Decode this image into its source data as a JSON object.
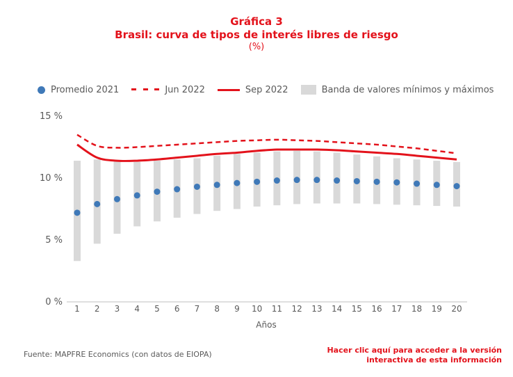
{
  "title": {
    "line1": "Gráfica 3",
    "line2": "Brasil: curva de tipos de interés libres de riesgo",
    "line3": "(%)"
  },
  "legend": {
    "items": [
      {
        "label": "Promedio 2021"
      },
      {
        "label": "Jun 2022"
      },
      {
        "label": "Sep 2022"
      },
      {
        "label": "Banda de valores mínimos y máximos"
      }
    ]
  },
  "footer": {
    "source": "Fuente: MAPFRE Economics (con datos de EIOPA)",
    "link_line1": "Hacer clic aquí para acceder a la versión",
    "link_line2": "interactiva de esta información"
  },
  "colors": {
    "accent": "#e3121b",
    "dots": "#3f79b8",
    "band": "#d9d9d9",
    "axis": "#bfbfbf"
  },
  "chart_data": {
    "type": "line",
    "title": "Brasil: curva de tipos de interés libres de riesgo",
    "xlabel": "Años",
    "ylabel": "",
    "x": [
      1,
      2,
      3,
      4,
      5,
      6,
      7,
      8,
      9,
      10,
      11,
      12,
      13,
      14,
      15,
      16,
      17,
      18,
      19,
      20
    ],
    "y_ticks": [
      "0 %",
      "5 %",
      "10 %",
      "15 %"
    ],
    "y_tick_values": [
      0,
      5,
      10,
      15
    ],
    "ylim": [
      0,
      15
    ],
    "grid": false,
    "legend_position": "top",
    "series": [
      {
        "name": "Promedio 2021",
        "style": "dots",
        "values": [
          7.2,
          7.9,
          8.3,
          8.6,
          8.9,
          9.1,
          9.3,
          9.45,
          9.6,
          9.7,
          9.8,
          9.85,
          9.85,
          9.8,
          9.75,
          9.7,
          9.65,
          9.55,
          9.45,
          9.35
        ]
      },
      {
        "name": "Jun 2022",
        "style": "dashed",
        "values": [
          13.5,
          12.6,
          12.45,
          12.5,
          12.6,
          12.7,
          12.8,
          12.9,
          13.0,
          13.05,
          13.1,
          13.05,
          13.0,
          12.9,
          12.8,
          12.7,
          12.55,
          12.4,
          12.2,
          12.0
        ]
      },
      {
        "name": "Sep 2022",
        "style": "solid",
        "values": [
          12.7,
          11.65,
          11.4,
          11.4,
          11.5,
          11.65,
          11.8,
          11.95,
          12.05,
          12.2,
          12.3,
          12.3,
          12.3,
          12.25,
          12.15,
          12.05,
          11.95,
          11.8,
          11.65,
          11.5
        ]
      },
      {
        "name": "Banda de valores mínimos y máximos",
        "style": "band",
        "min": [
          3.3,
          4.7,
          5.5,
          6.1,
          6.5,
          6.8,
          7.1,
          7.35,
          7.5,
          7.7,
          7.8,
          7.9,
          7.95,
          7.95,
          7.95,
          7.9,
          7.85,
          7.8,
          7.75,
          7.7
        ],
        "max": [
          11.4,
          11.5,
          11.4,
          11.3,
          11.4,
          11.5,
          11.6,
          11.8,
          11.95,
          12.05,
          12.15,
          12.2,
          12.15,
          12.05,
          11.9,
          11.75,
          11.6,
          11.5,
          11.4,
          11.3
        ]
      }
    ]
  }
}
